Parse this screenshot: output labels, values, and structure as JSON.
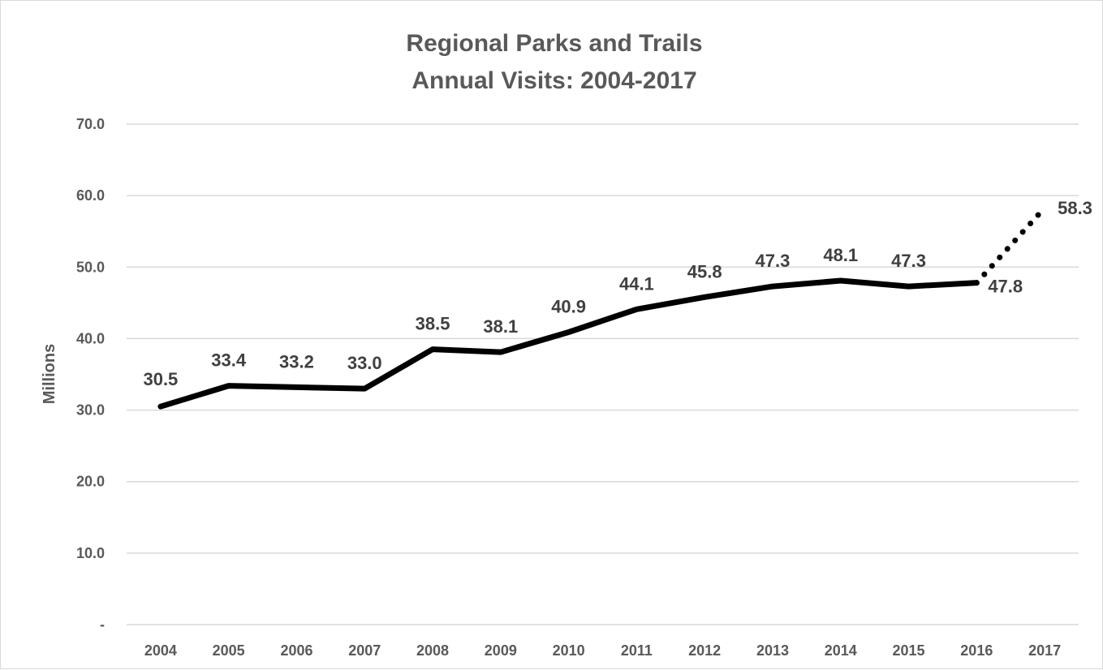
{
  "chart_data": {
    "type": "line",
    "title": [
      "Regional Parks and Trails",
      "Annual Visits: 2004-2017"
    ],
    "ylabel": "Millions",
    "xlabel": "",
    "ylim": [
      0,
      70
    ],
    "y_ticks": [
      0,
      10,
      20,
      30,
      40,
      50,
      60,
      70
    ],
    "y_tick_labels": [
      "-",
      "10.0",
      "20.0",
      "30.0",
      "40.0",
      "50.0",
      "60.0",
      "70.0"
    ],
    "grid": true,
    "legend": "none",
    "categories": [
      "2004",
      "2005",
      "2006",
      "2007",
      "2008",
      "2009",
      "2010",
      "2011",
      "2012",
      "2013",
      "2014",
      "2015",
      "2016",
      "2017"
    ],
    "series": [
      {
        "values": [
          30.5,
          33.4,
          33.2,
          33.0,
          38.5,
          38.1,
          40.9,
          44.1,
          45.8,
          47.3,
          48.1,
          47.3,
          47.8,
          58.3
        ],
        "labels": [
          "30.5",
          "33.4",
          "33.2",
          "33.0",
          "38.5",
          "38.1",
          "40.9",
          "44.1",
          "45.8",
          "47.3",
          "48.1",
          "47.3",
          "47.8",
          "58.3"
        ],
        "line_style": "solid",
        "projected_from_index": 12,
        "projected_style": "dotted",
        "color": "#000000"
      }
    ]
  }
}
